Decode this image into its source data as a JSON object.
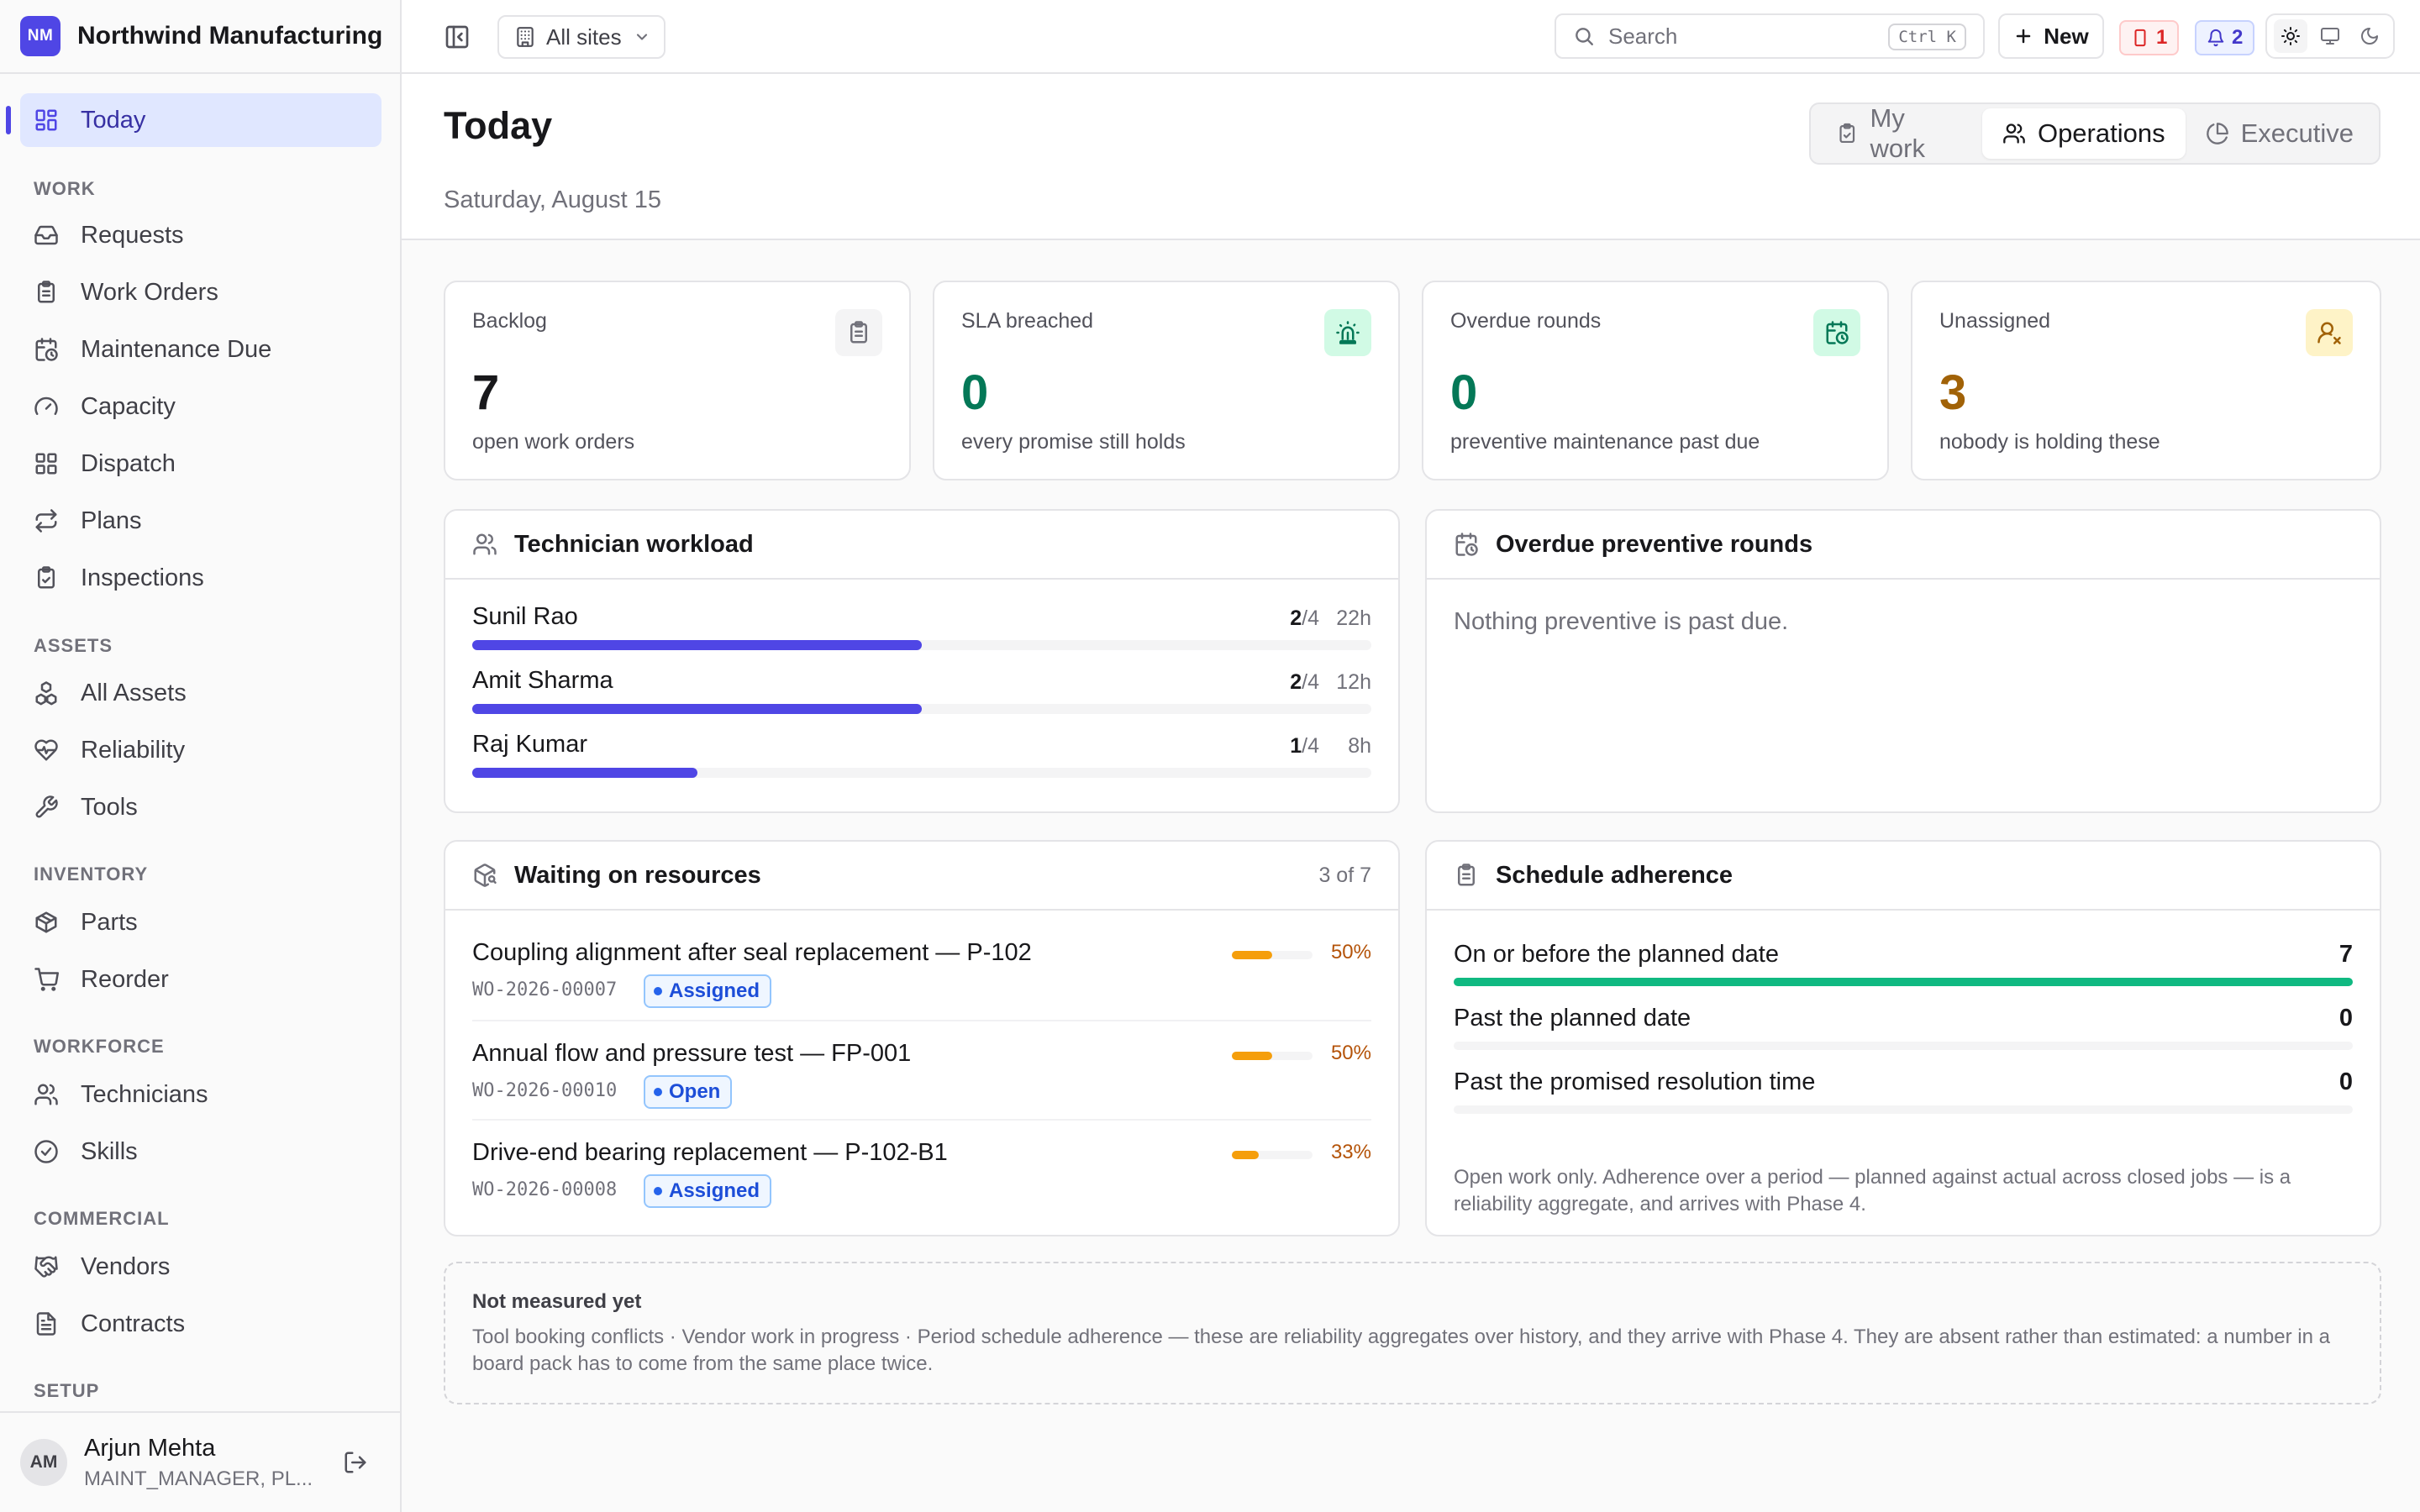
{
  "app": {
    "initials": "NM",
    "name": "Northwind Manufacturing"
  },
  "sidebar": {
    "today": "Today",
    "sections": [
      {
        "title": "WORK",
        "items": [
          "Requests",
          "Work Orders",
          "Maintenance Due",
          "Capacity",
          "Dispatch",
          "Plans",
          "Inspections"
        ]
      },
      {
        "title": "ASSETS",
        "items": [
          "All Assets",
          "Reliability",
          "Tools"
        ]
      },
      {
        "title": "INVENTORY",
        "items": [
          "Parts",
          "Reorder"
        ]
      },
      {
        "title": "WORKFORCE",
        "items": [
          "Technicians",
          "Skills"
        ]
      },
      {
        "title": "COMMERCIAL",
        "items": [
          "Vendors",
          "Contracts"
        ]
      },
      {
        "title": "SETUP",
        "items": []
      }
    ],
    "user": {
      "initials": "AM",
      "name": "Arjun Mehta",
      "role": "MAINT_MANAGER, PL..."
    }
  },
  "topbar": {
    "site": "All sites",
    "search_placeholder": "Search",
    "search_shortcut": "Ctrl K",
    "new_label": "New",
    "alerts_count": "1",
    "notifications_count": "2"
  },
  "page": {
    "title": "Today",
    "date": "Saturday, August 15",
    "views": [
      "My work",
      "Operations",
      "Executive"
    ],
    "active_view": "Operations"
  },
  "kpis": [
    {
      "label": "Backlog",
      "value": "7",
      "sub": "open work orders",
      "color": "#18181b",
      "icon": "clipboard-icon"
    },
    {
      "label": "SLA breached",
      "value": "0",
      "sub": "every promise still holds",
      "color": "#047857",
      "icon": "siren-icon"
    },
    {
      "label": "Overdue rounds",
      "value": "0",
      "sub": "preventive maintenance past due",
      "color": "#047857",
      "icon": "calendar-clock-icon"
    },
    {
      "label": "Unassigned",
      "value": "3",
      "sub": "nobody is holding these",
      "color": "#a16207",
      "icon": "user-x-icon"
    }
  ],
  "workload": {
    "title": "Technician workload",
    "rows": [
      {
        "name": "Sunil Rao",
        "assigned": "2",
        "capacity": "/4",
        "hours": "22h",
        "fraction": 0.5
      },
      {
        "name": "Amit Sharma",
        "assigned": "2",
        "capacity": "/4",
        "hours": "12h",
        "fraction": 0.5
      },
      {
        "name": "Raj Kumar",
        "assigned": "1",
        "capacity": "/4",
        "hours": "8h",
        "fraction": 0.25
      }
    ]
  },
  "overdue": {
    "title": "Overdue preventive rounds",
    "empty": "Nothing preventive is past due."
  },
  "waiting": {
    "title": "Waiting on resources",
    "count": "3 of 7",
    "rows": [
      {
        "title": "Coupling alignment after seal replacement — P-102",
        "code": "WO-2026-00007",
        "status": "Assigned",
        "pct": "50%",
        "fraction": 0.5
      },
      {
        "title": "Annual flow and pressure test — FP-001",
        "code": "WO-2026-00010",
        "status": "Open",
        "pct": "50%",
        "fraction": 0.5
      },
      {
        "title": "Drive-end bearing replacement — P-102-B1",
        "code": "WO-2026-00008",
        "status": "Assigned",
        "pct": "33%",
        "fraction": 0.33
      }
    ]
  },
  "adherence": {
    "title": "Schedule adherence",
    "rows": [
      {
        "label": "On or before the planned date",
        "value": "7",
        "fraction": 1.0
      },
      {
        "label": "Past the planned date",
        "value": "0",
        "fraction": 0
      },
      {
        "label": "Past the promised resolution time",
        "value": "0",
        "fraction": 0
      }
    ],
    "note": "Open work only. Adherence over a period — planned against actual across closed jobs — is a reliability aggregate, and arrives with Phase 4."
  },
  "not_measured": {
    "title": "Not measured yet",
    "text": "Tool booking conflicts · Vendor work in progress · Period schedule adherence — these are reliability aggregates over history, and they arrive with Phase 4. They are absent rather than estimated: a number in a board pack has to come from the same place twice."
  },
  "colors": {
    "accent": "#4f46e5",
    "warning": "#f59e0b",
    "success": "#10b981"
  }
}
